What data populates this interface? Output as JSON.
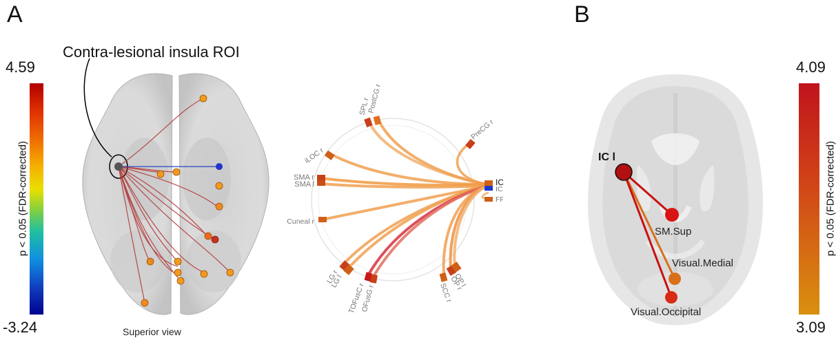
{
  "panel_a": {
    "letter": "A",
    "roi_label": "Contra-lesional insula ROI",
    "colorbar": {
      "max": "4.59",
      "min": "-3.24",
      "label": "p < 0.05 (FDR-corrected)"
    },
    "view_label": "Superior view",
    "chord_regions": [
      "PostCG r",
      "SPL r",
      "PreCG r",
      "iLOC r",
      "SMA r",
      "SMA l",
      "IC l",
      "IC r",
      "FP r",
      "Cuneal r",
      "LG r",
      "LG l",
      "TOFusC r",
      "OFusG r",
      "SCC r",
      "OP l",
      "OP r"
    ]
  },
  "panel_b": {
    "letter": "B",
    "colorbar": {
      "max": "4.09",
      "min": "3.09",
      "label": "p < 0.05 (FDR-corrected)"
    },
    "seed_label": "IC l",
    "targets": [
      "SM.Sup",
      "Visual.Medial",
      "Visual.Occipital"
    ]
  },
  "colors": {
    "positive_high": "#c0141c",
    "positive_low": "#d9900f",
    "negative": "#1f3fbf",
    "seed": "#444444"
  }
}
